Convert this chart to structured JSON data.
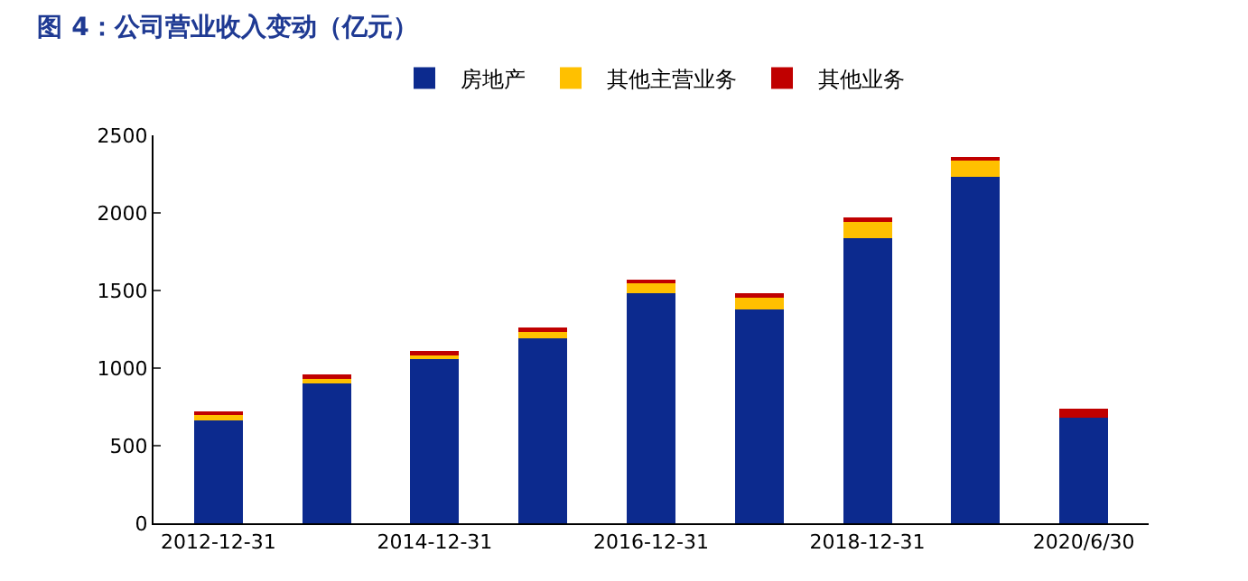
{
  "chart_data": {
    "type": "bar",
    "title": "图 4：公司营业收入变动（亿元）",
    "stacked": true,
    "categories": [
      "2012-12-31",
      null,
      "2014-12-31",
      null,
      "2016-12-31",
      null,
      "2018-12-31",
      null,
      "2020/6/30"
    ],
    "series": [
      {
        "name": "房地产",
        "color": "#0c2a8e",
        "values": [
          660,
          900,
          1060,
          1190,
          1480,
          1380,
          1840,
          2230,
          680
        ]
      },
      {
        "name": "其他主营业务",
        "color": "#ffc000",
        "values": [
          40,
          40,
          30,
          50,
          70,
          80,
          110,
          110,
          0
        ]
      },
      {
        "name": "其他业务",
        "color": "#c00000",
        "values": [
          10,
          20,
          20,
          20,
          20,
          20,
          20,
          20,
          60
        ]
      }
    ],
    "ylim": [
      0,
      2500
    ],
    "yticks": [
      0,
      500,
      1000,
      1500,
      2000,
      2500
    ],
    "legend": "top"
  }
}
